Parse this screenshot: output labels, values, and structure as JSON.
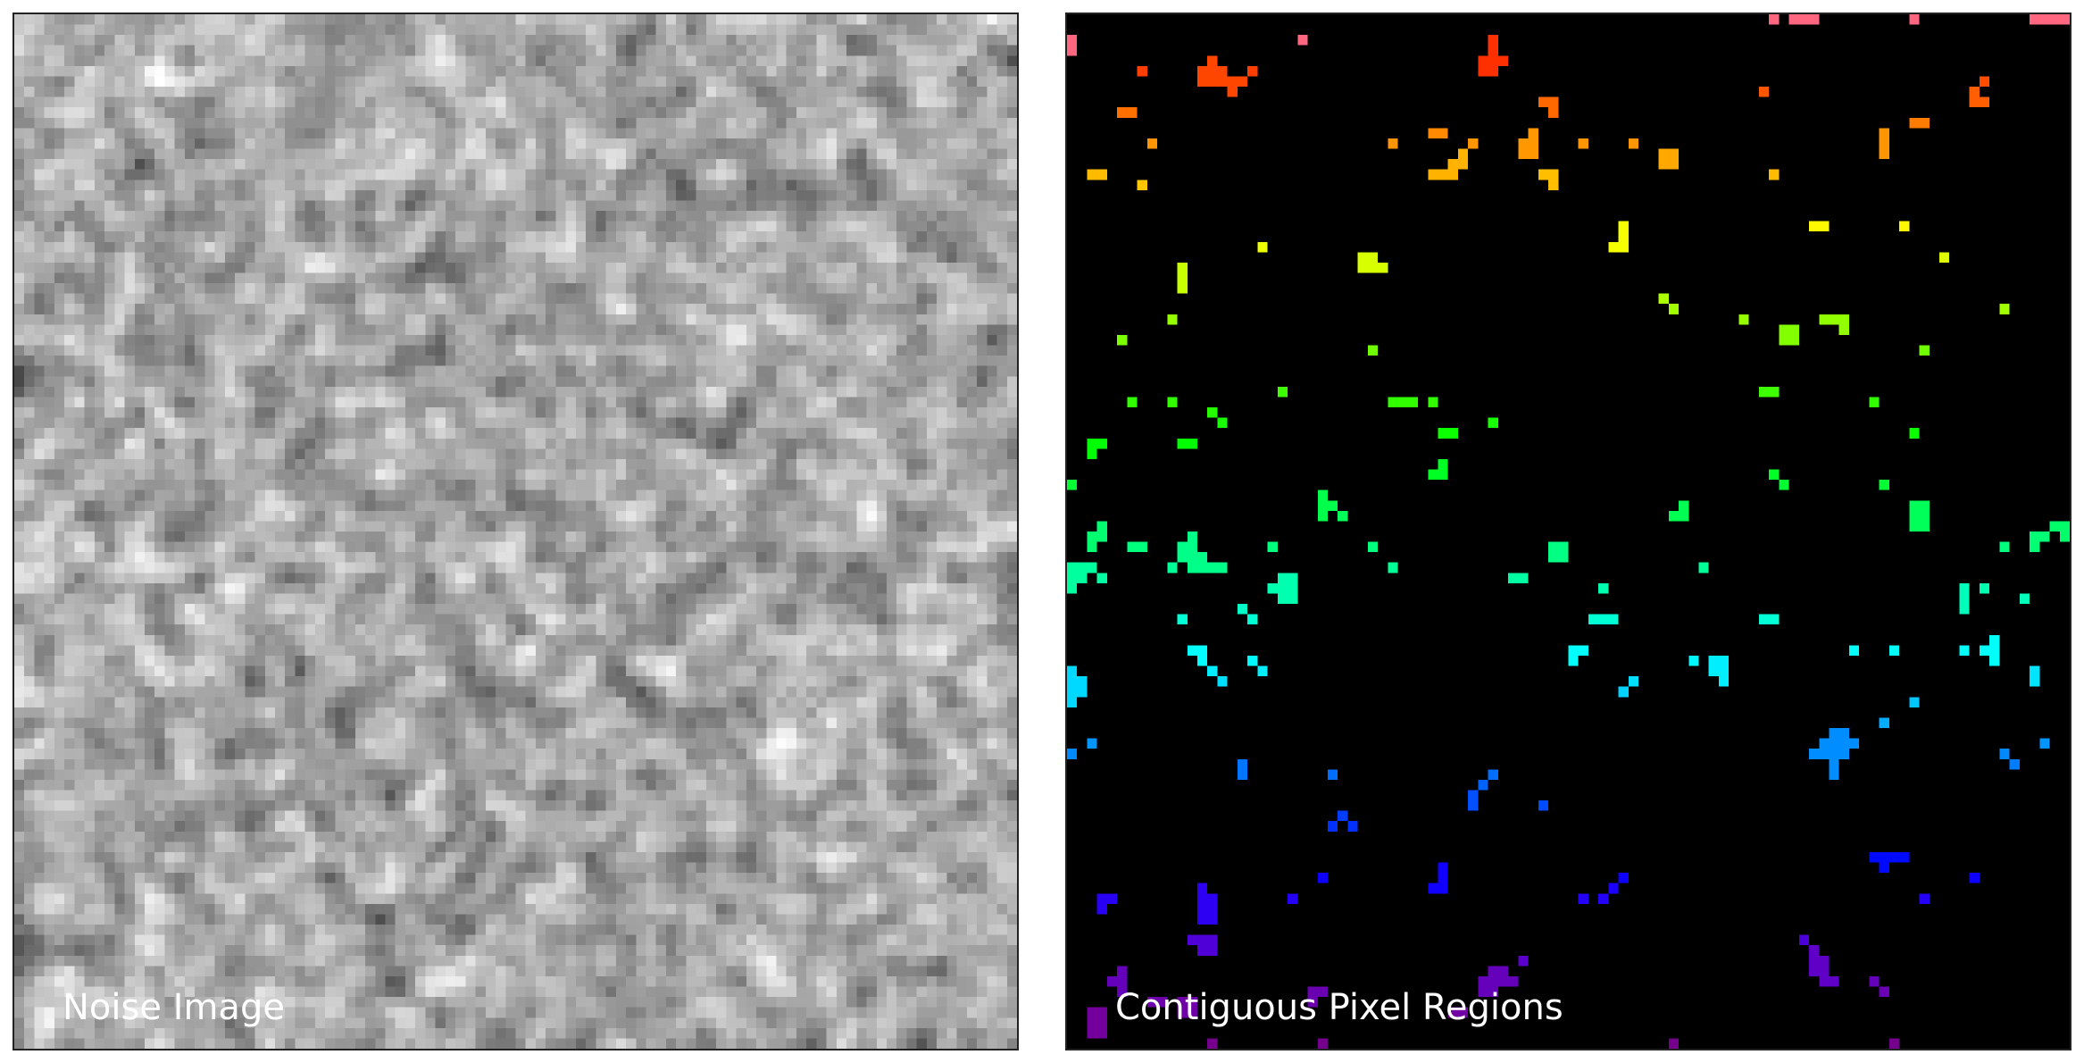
{
  "panels": {
    "left": {
      "label": "Noise Image",
      "colormap": "grayscale"
    },
    "right": {
      "label": "Contiguous Pixel Regions",
      "background_color": "#000000",
      "colormap": "rainbow (red at top through orange, yellow, green, cyan, blue to purple at bottom)"
    }
  }
}
